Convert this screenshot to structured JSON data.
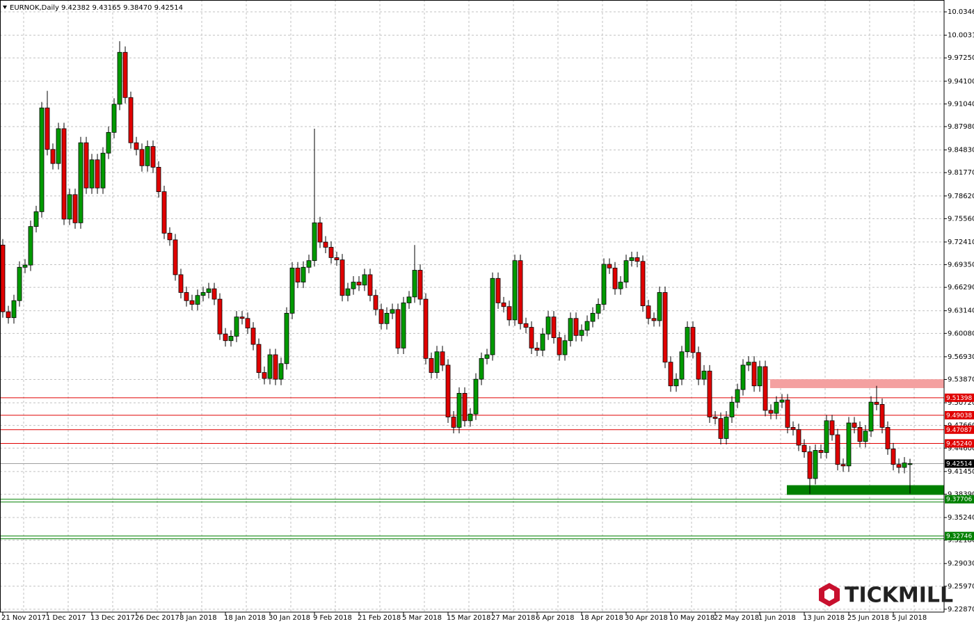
{
  "chart_data": {
    "type": "candlestick",
    "title": "EURNOK,Daily",
    "subtitle": "9.42382 9.43165 9.38470 9.42514",
    "watermark": "TICKMILL",
    "categories": [
      "21 Nov 2017",
      null,
      null,
      null,
      null,
      null,
      null,
      null,
      "1 Dec 2017",
      null,
      null,
      null,
      null,
      null,
      null,
      null,
      "13 Dec 2017",
      null,
      null,
      null,
      null,
      null,
      null,
      null,
      "26 Dec 2017",
      null,
      null,
      null,
      null,
      null,
      null,
      null,
      "8 Jan 2018",
      null,
      null,
      null,
      null,
      null,
      null,
      null,
      "18 Jan 2018",
      null,
      null,
      null,
      null,
      null,
      null,
      null,
      "30 Jan 2018",
      null,
      null,
      null,
      null,
      null,
      null,
      null,
      "9 Feb 2018",
      null,
      null,
      null,
      null,
      null,
      null,
      null,
      "21 Feb 2018",
      null,
      null,
      null,
      null,
      null,
      null,
      null,
      "5 Mar 2018",
      null,
      null,
      null,
      null,
      null,
      null,
      null,
      "15 Mar 2018",
      null,
      null,
      null,
      null,
      null,
      null,
      null,
      "27 Mar 2018",
      null,
      null,
      null,
      null,
      null,
      null,
      null,
      "6 Apr 2018",
      null,
      null,
      null,
      null,
      null,
      null,
      null,
      "18 Apr 2018",
      null,
      null,
      null,
      null,
      null,
      null,
      null,
      "30 Apr 2018",
      null,
      null,
      null,
      null,
      null,
      null,
      null,
      "10 May 2018",
      null,
      null,
      null,
      null,
      null,
      null,
      null,
      "22 May 2018",
      null,
      null,
      null,
      null,
      null,
      null,
      null,
      "1 Jun 2018",
      null,
      null,
      null,
      null,
      null,
      null,
      null,
      "13 Jun 2018",
      null,
      null,
      null,
      null,
      null,
      null,
      null,
      "25 Jun 2018",
      null,
      null,
      null,
      null,
      null,
      null,
      null,
      "5 Jul 2018",
      null,
      null,
      null
    ],
    "open": [
      9.72,
      9.63,
      9.622,
      9.645,
      9.69,
      9.693,
      9.745,
      9.765,
      9.905,
      9.849,
      9.83,
      9.877,
      9.755,
      9.788,
      9.75,
      9.858,
      9.797,
      9.835,
      9.797,
      9.844,
      9.872,
      9.91,
      9.98,
      9.919,
      9.858,
      9.849,
      9.827,
      9.853,
      9.825,
      9.792,
      9.736,
      9.727,
      9.68,
      9.656,
      9.645,
      9.64,
      9.652,
      9.656,
      9.661,
      9.647,
      9.6,
      9.591,
      9.597,
      9.623,
      9.621,
      9.608,
      9.586,
      9.548,
      9.54,
      9.572,
      9.539,
      9.56,
      9.628,
      9.689,
      9.67,
      9.69,
      9.699,
      9.75,
      9.724,
      9.717,
      9.703,
      9.7,
      9.652,
      9.661,
      9.67,
      9.666,
      9.68,
      9.652,
      9.633,
      9.614,
      9.628,
      9.633,
      9.581,
      9.642,
      9.65,
      9.686,
      9.647,
      9.567,
      9.548,
      9.576,
      9.558,
      9.488,
      9.474,
      9.52,
      9.483,
      9.492,
      9.539,
      9.567,
      9.572,
      9.675,
      9.642,
      9.637,
      9.619,
      9.699,
      9.614,
      9.609,
      9.581,
      9.578,
      9.6,
      9.623,
      9.595,
      9.572,
      9.591,
      9.621,
      9.598,
      9.605,
      9.617,
      9.628,
      9.64,
      9.694,
      9.689,
      9.661,
      9.67,
      9.699,
      9.703,
      9.698,
      9.638,
      9.621,
      9.618,
      9.656,
      9.562,
      9.53,
      9.539,
      9.576,
      9.609,
      9.575,
      9.539,
      9.55,
      9.488,
      9.486,
      9.459,
      9.488,
      9.508,
      9.525,
      9.558,
      9.562,
      9.53,
      9.556,
      9.497,
      9.493,
      9.508,
      9.511,
      9.474,
      9.471,
      9.45,
      9.441,
      9.405,
      9.443,
      9.44,
      9.483,
      9.464,
      9.424,
      9.422,
      9.48,
      9.474,
      9.455,
      9.469,
      9.508,
      9.505,
      9.474,
      9.445,
      9.424,
      9.42,
      9.42382
    ],
    "high": [
      9.728,
      9.638,
      9.653,
      9.698,
      9.701,
      9.753,
      9.773,
      9.913,
      9.928,
      9.857,
      9.885,
      9.885,
      9.796,
      9.796,
      9.866,
      9.866,
      9.843,
      9.843,
      9.852,
      9.88,
      9.918,
      9.995,
      9.988,
      9.927,
      9.866,
      9.857,
      9.861,
      9.861,
      9.833,
      9.8,
      9.744,
      9.735,
      9.688,
      9.664,
      9.653,
      9.66,
      9.664,
      9.669,
      9.669,
      9.655,
      9.608,
      9.605,
      9.631,
      9.631,
      9.629,
      9.616,
      9.594,
      9.556,
      9.58,
      9.58,
      9.568,
      9.636,
      9.697,
      9.697,
      9.698,
      9.707,
      9.877,
      9.758,
      9.732,
      9.725,
      9.711,
      9.708,
      9.669,
      9.678,
      9.678,
      9.688,
      9.688,
      9.66,
      9.641,
      9.636,
      9.641,
      9.641,
      9.65,
      9.658,
      9.72,
      9.694,
      9.655,
      9.575,
      9.584,
      9.584,
      9.566,
      9.496,
      9.528,
      9.528,
      9.5,
      9.547,
      9.575,
      9.58,
      9.683,
      9.683,
      9.65,
      9.645,
      9.707,
      9.707,
      9.622,
      9.617,
      9.589,
      9.608,
      9.631,
      9.631,
      9.603,
      9.599,
      9.629,
      9.629,
      9.613,
      9.625,
      9.636,
      9.648,
      9.702,
      9.702,
      9.697,
      9.678,
      9.707,
      9.711,
      9.711,
      9.706,
      9.646,
      9.629,
      9.664,
      9.664,
      9.57,
      9.547,
      9.584,
      9.617,
      9.617,
      9.583,
      9.558,
      9.558,
      9.496,
      9.494,
      9.496,
      9.516,
      9.533,
      9.566,
      9.57,
      9.57,
      9.564,
      9.564,
      9.505,
      9.516,
      9.519,
      9.519,
      9.482,
      9.479,
      9.458,
      9.449,
      9.451,
      9.451,
      9.491,
      9.491,
      9.472,
      9.432,
      9.488,
      9.488,
      9.482,
      9.477,
      9.516,
      9.53,
      9.513,
      9.482,
      9.453,
      9.432,
      9.434,
      9.43165
    ],
    "low": [
      9.622,
      9.614,
      9.614,
      9.637,
      9.682,
      9.685,
      9.737,
      9.757,
      9.841,
      9.822,
      9.822,
      9.747,
      9.747,
      9.742,
      9.742,
      9.789,
      9.789,
      9.789,
      9.789,
      9.836,
      9.864,
      9.902,
      9.911,
      9.85,
      9.841,
      9.819,
      9.819,
      9.817,
      9.784,
      9.728,
      9.719,
      9.672,
      9.648,
      9.637,
      9.632,
      9.632,
      9.644,
      9.648,
      9.639,
      9.592,
      9.583,
      9.583,
      9.589,
      9.613,
      9.6,
      9.578,
      9.54,
      9.532,
      9.532,
      9.531,
      9.531,
      9.552,
      9.62,
      9.662,
      9.662,
      9.682,
      9.691,
      9.716,
      9.709,
      9.695,
      9.692,
      9.644,
      9.644,
      9.653,
      9.658,
      9.658,
      9.644,
      9.625,
      9.606,
      9.606,
      9.62,
      9.573,
      9.573,
      9.634,
      9.642,
      9.639,
      9.559,
      9.54,
      9.54,
      9.55,
      9.48,
      9.466,
      9.466,
      9.475,
      9.475,
      9.484,
      9.531,
      9.559,
      9.564,
      9.634,
      9.629,
      9.611,
      9.611,
      9.606,
      9.601,
      9.573,
      9.57,
      9.57,
      9.592,
      9.587,
      9.564,
      9.564,
      9.583,
      9.59,
      9.59,
      9.597,
      9.609,
      9.62,
      9.632,
      9.681,
      9.653,
      9.653,
      9.662,
      9.691,
      9.69,
      9.63,
      9.613,
      9.61,
      9.61,
      9.554,
      9.522,
      9.522,
      9.531,
      9.568,
      9.567,
      9.531,
      9.531,
      9.48,
      9.478,
      9.451,
      9.451,
      9.48,
      9.5,
      9.517,
      9.55,
      9.522,
      9.522,
      9.489,
      9.485,
      9.485,
      9.5,
      9.466,
      9.463,
      9.442,
      9.433,
      9.384,
      9.397,
      9.432,
      9.432,
      9.456,
      9.416,
      9.414,
      9.414,
      9.466,
      9.447,
      9.447,
      9.461,
      9.497,
      9.466,
      9.437,
      9.416,
      9.412,
      9.412,
      9.3847
    ],
    "close": [
      9.63,
      9.622,
      9.645,
      9.69,
      9.693,
      9.745,
      9.765,
      9.905,
      9.849,
      9.83,
      9.877,
      9.755,
      9.788,
      9.75,
      9.858,
      9.797,
      9.835,
      9.797,
      9.844,
      9.872,
      9.91,
      9.98,
      9.919,
      9.858,
      9.849,
      9.827,
      9.853,
      9.825,
      9.792,
      9.736,
      9.727,
      9.68,
      9.656,
      9.645,
      9.64,
      9.652,
      9.656,
      9.661,
      9.647,
      9.6,
      9.591,
      9.597,
      9.623,
      9.621,
      9.608,
      9.586,
      9.548,
      9.54,
      9.572,
      9.539,
      9.56,
      9.628,
      9.689,
      9.67,
      9.69,
      9.699,
      9.75,
      9.724,
      9.717,
      9.703,
      9.7,
      9.652,
      9.661,
      9.67,
      9.666,
      9.68,
      9.652,
      9.633,
      9.614,
      9.628,
      9.633,
      9.581,
      9.642,
      9.65,
      9.686,
      9.647,
      9.567,
      9.548,
      9.576,
      9.558,
      9.488,
      9.474,
      9.52,
      9.483,
      9.492,
      9.539,
      9.567,
      9.572,
      9.675,
      9.642,
      9.637,
      9.619,
      9.699,
      9.614,
      9.609,
      9.581,
      9.578,
      9.6,
      9.623,
      9.595,
      9.572,
      9.591,
      9.621,
      9.598,
      9.605,
      9.617,
      9.628,
      9.64,
      9.694,
      9.689,
      9.661,
      9.67,
      9.699,
      9.703,
      9.698,
      9.638,
      9.621,
      9.618,
      9.656,
      9.562,
      9.53,
      9.539,
      9.576,
      9.609,
      9.575,
      9.539,
      9.55,
      9.488,
      9.486,
      9.459,
      9.488,
      9.508,
      9.525,
      9.558,
      9.562,
      9.53,
      9.556,
      9.497,
      9.493,
      9.508,
      9.511,
      9.474,
      9.471,
      9.45,
      9.441,
      9.405,
      9.443,
      9.44,
      9.483,
      9.464,
      9.424,
      9.422,
      9.48,
      9.474,
      9.455,
      9.469,
      9.508,
      9.505,
      9.474,
      9.445,
      9.424,
      9.42,
      9.426,
      9.42514
    ],
    "up_color": "#009a00",
    "down_color": "#e00000",
    "ylim": [
      9.2126,
      10.0506
    ],
    "yticks": [
      {
        "value": 10.0346,
        "label": "10.03460"
      },
      {
        "value": 10.0031,
        "label": "10.00310"
      },
      {
        "value": 9.9725,
        "label": "9.97250"
      },
      {
        "value": 9.941,
        "label": "9.94100"
      },
      {
        "value": 9.9104,
        "label": "9.91040"
      },
      {
        "value": 9.8798,
        "label": "9.87980"
      },
      {
        "value": 9.8483,
        "label": "9.84830"
      },
      {
        "value": 9.8177,
        "label": "9.81770"
      },
      {
        "value": 9.7862,
        "label": "9.78620"
      },
      {
        "value": 9.7556,
        "label": "9.75560"
      },
      {
        "value": 9.7241,
        "label": "9.72410"
      },
      {
        "value": 9.6935,
        "label": "9.69350"
      },
      {
        "value": 9.6629,
        "label": "9.66290"
      },
      {
        "value": 9.6314,
        "label": "9.63140"
      },
      {
        "value": 9.6008,
        "label": "9.60080"
      },
      {
        "value": 9.5693,
        "label": "9.56930"
      },
      {
        "value": 9.5387,
        "label": "9.53870"
      },
      {
        "value": 9.5072,
        "label": "9.50720"
      },
      {
        "value": 9.4766,
        "label": "9.47660"
      },
      {
        "value": 9.446,
        "label": "9.44600"
      },
      {
        "value": 9.4145,
        "label": "9.41450"
      },
      {
        "value": 9.3839,
        "label": "9.38390"
      },
      {
        "value": 9.3524,
        "label": "9.35240"
      },
      {
        "value": 9.3218,
        "label": "9.32180"
      },
      {
        "value": 9.2903,
        "label": "9.29030"
      },
      {
        "value": 9.2597,
        "label": "9.25970"
      },
      {
        "value": 9.2287,
        "label": "9.22870"
      }
    ],
    "grid": true,
    "levels": [
      {
        "value": 9.51398,
        "label": "9.51398",
        "color": "#e00000"
      },
      {
        "value": 9.49038,
        "label": "9.49038",
        "color": "#e00000"
      },
      {
        "value": 9.47087,
        "label": "9.47087",
        "color": "#e00000"
      },
      {
        "value": 9.4524,
        "label": "9.45240",
        "color": "#e00000"
      },
      {
        "value": 9.37706,
        "label": "9.37706",
        "color": "#008000"
      },
      {
        "value": 9.32746,
        "label": "9.32746",
        "color": "#008000"
      }
    ],
    "current_price": {
      "value": 9.42514,
      "label": "9.42514",
      "color": "#000000"
    },
    "zones": [
      {
        "from": 9.527,
        "to": 9.539,
        "color": "#f4a0a0"
      },
      {
        "from": 9.383,
        "to": 9.396,
        "color": "#008000"
      }
    ]
  }
}
